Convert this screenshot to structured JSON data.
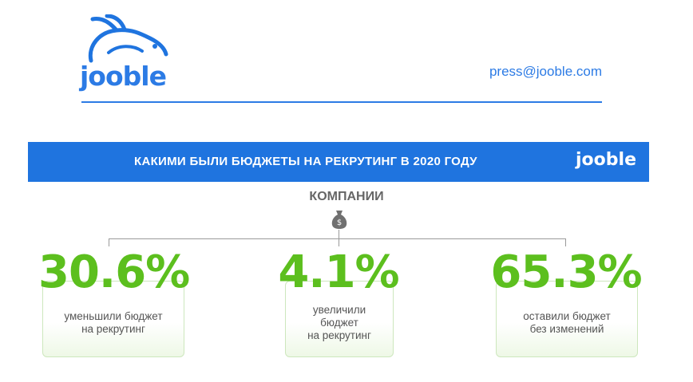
{
  "header": {
    "logo_text": "jooble",
    "email": "press@jooble.com"
  },
  "banner": {
    "title": "КАКИМИ БЫЛИ БЮДЖЕТЫ НА РЕКРУТИНГ В 2020 ГОДУ",
    "logo_text": "jooble"
  },
  "section": {
    "label": "КОМПАНИИ",
    "icon": "money-bag-icon"
  },
  "stats": [
    {
      "percent": "30.6%",
      "line1": "уменьшили бюджет",
      "line2": "на рекрутинг",
      "line3": ""
    },
    {
      "percent": "4.1%",
      "line1": "увеличили",
      "line2": "бюджет",
      "line3": "на рекрутинг"
    },
    {
      "percent": "65.3%",
      "line1": "оставили бюджет",
      "line2": "без изменений",
      "line3": ""
    }
  ],
  "colors": {
    "brand_blue": "#1f74df",
    "accent_green": "#5cbf1e",
    "text_gray": "#555555"
  }
}
